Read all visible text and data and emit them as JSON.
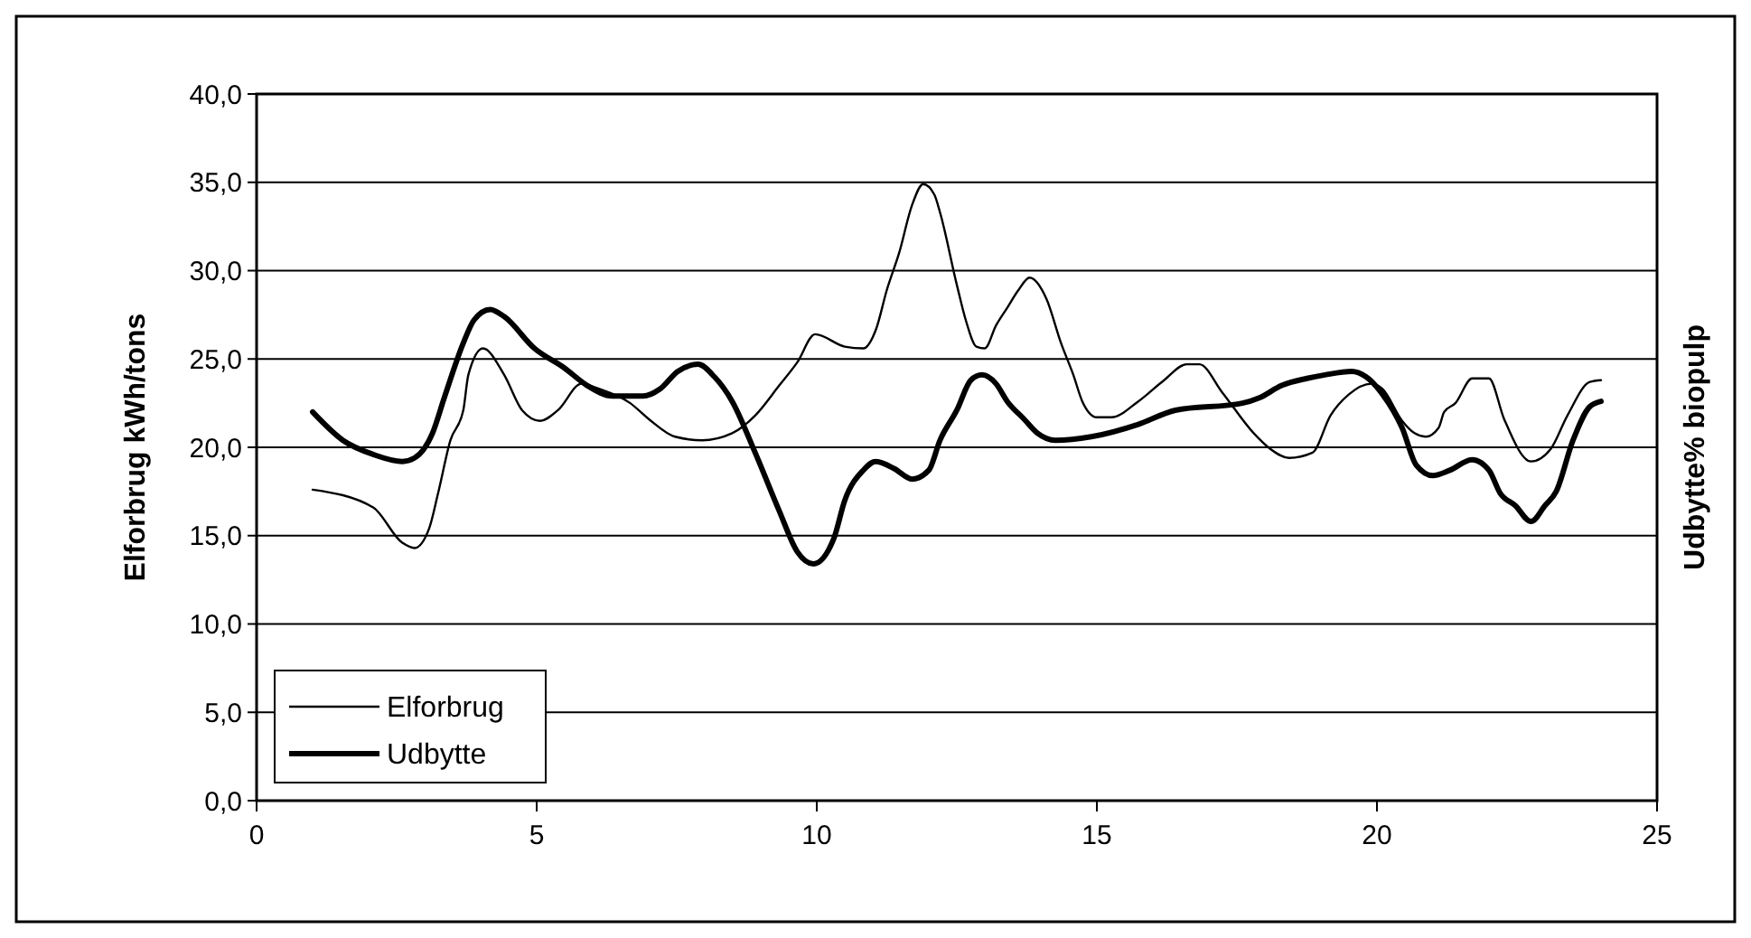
{
  "chart_data": {
    "type": "line",
    "ylabel": "Elforbrug kWh/tons",
    "y2label": "Udbytte% biopulp",
    "xlim": [
      0,
      25
    ],
    "xticks": [
      0,
      5,
      10,
      15,
      20,
      25
    ],
    "ylim": [
      0,
      40
    ],
    "yticks": [
      {
        "value": 0,
        "label": "0,0"
      },
      {
        "value": 5,
        "label": "5,0"
      },
      {
        "value": 10,
        "label": "10,0"
      },
      {
        "value": 15,
        "label": "15,0"
      },
      {
        "value": 20,
        "label": "20,0"
      },
      {
        "value": 25,
        "label": "25,0"
      },
      {
        "value": 30,
        "label": "30,0"
      },
      {
        "value": 35,
        "label": "35,0"
      },
      {
        "value": 40,
        "label": "40,0"
      }
    ],
    "grid": "y",
    "legend": "bottom left",
    "line_style": "solid",
    "series": [
      {
        "name": "Elforbrug",
        "color": "#000000",
        "x": [
          1,
          2.08,
          2.6,
          2.82,
          3.08,
          3.24,
          3.46,
          3.69,
          3.78,
          4.04,
          4.42,
          4.74,
          5.06,
          5.38,
          5.8,
          6.12,
          6.67,
          7.0,
          7.47,
          7.95,
          8.49,
          8.9,
          9.33,
          9.65,
          9.97,
          10.5,
          10.83,
          11.06,
          11.25,
          11.47,
          11.7,
          11.9,
          12.1,
          12.2,
          12.5,
          12.66,
          12.85,
          13.0,
          13.2,
          13.4,
          13.6,
          13.8,
          14.1,
          14.36,
          14.58,
          14.74,
          15.0,
          15.26,
          15.74,
          16.2,
          16.6,
          16.83,
          17.24,
          17.8,
          18.1,
          18.43,
          18.85,
          19.17,
          19.5,
          19.9,
          20.1,
          20.45,
          20.67,
          20.87,
          21.1,
          21.2,
          21.4,
          21.7,
          22.0,
          22.27,
          22.75,
          23.1,
          23.4,
          23.8,
          24.0
        ],
        "values": [
          17.6,
          16.6,
          14.6,
          14.3,
          15.4,
          17.4,
          20.4,
          22.1,
          24.1,
          25.6,
          24.1,
          22.1,
          21.5,
          22.1,
          23.6,
          23.3,
          22.5,
          21.6,
          20.6,
          20.4,
          20.8,
          21.8,
          23.5,
          24.8,
          26.4,
          25.7,
          25.6,
          26.7,
          28.9,
          31.0,
          33.7,
          34.9,
          34.3,
          33.3,
          29.2,
          27.2,
          25.7,
          25.6,
          26.9,
          27.9,
          28.9,
          29.6,
          28.4,
          25.9,
          24.1,
          22.6,
          21.7,
          21.7,
          22.6,
          23.8,
          24.7,
          24.7,
          23.1,
          20.8,
          19.9,
          19.4,
          19.7,
          21.8,
          23.0,
          23.6,
          23.3,
          21.5,
          20.8,
          20.6,
          21.1,
          22.0,
          22.5,
          23.9,
          23.9,
          21.6,
          19.2,
          19.9,
          21.8,
          23.7,
          23.8
        ]
      },
      {
        "name": "Udbytte",
        "color": "#000000",
        "x": [
          1.0,
          1.54,
          2.08,
          2.6,
          2.82,
          3.14,
          3.35,
          3.69,
          3.88,
          4.17,
          4.42,
          4.96,
          5.49,
          5.9,
          6.35,
          6.9,
          7.2,
          7.52,
          7.88,
          8.17,
          8.49,
          8.9,
          9.33,
          9.65,
          9.94,
          10.3,
          10.5,
          10.83,
          11.05,
          11.38,
          11.7,
          12.0,
          12.2,
          12.5,
          12.75,
          12.95,
          13.2,
          13.4,
          13.7,
          13.94,
          14.26,
          14.9,
          15.74,
          16.4,
          17.6,
          17.9,
          18.3,
          18.75,
          19.07,
          19.55,
          19.8,
          20.1,
          20.45,
          20.7,
          21.0,
          21.3,
          21.7,
          22.0,
          22.2,
          22.47,
          22.75,
          23.0,
          23.2,
          23.5,
          23.8,
          24.0
        ],
        "values": [
          22.0,
          20.4,
          19.6,
          19.2,
          19.4,
          20.8,
          22.8,
          25.9,
          27.2,
          27.8,
          27.4,
          25.6,
          24.5,
          23.5,
          22.9,
          22.9,
          23.3,
          24.3,
          24.7,
          24.0,
          22.6,
          19.7,
          16.4,
          14.1,
          13.4,
          14.8,
          17.0,
          18.7,
          19.2,
          18.8,
          18.2,
          18.7,
          20.4,
          22.1,
          23.8,
          24.1,
          23.6,
          22.6,
          21.6,
          20.8,
          20.4,
          20.6,
          21.3,
          22.1,
          22.5,
          22.8,
          23.5,
          23.9,
          24.1,
          24.3,
          24.0,
          23.0,
          21.1,
          19.0,
          18.4,
          18.7,
          19.3,
          18.7,
          17.4,
          16.7,
          15.8,
          16.7,
          17.5,
          20.4,
          22.3,
          22.6
        ]
      }
    ]
  }
}
